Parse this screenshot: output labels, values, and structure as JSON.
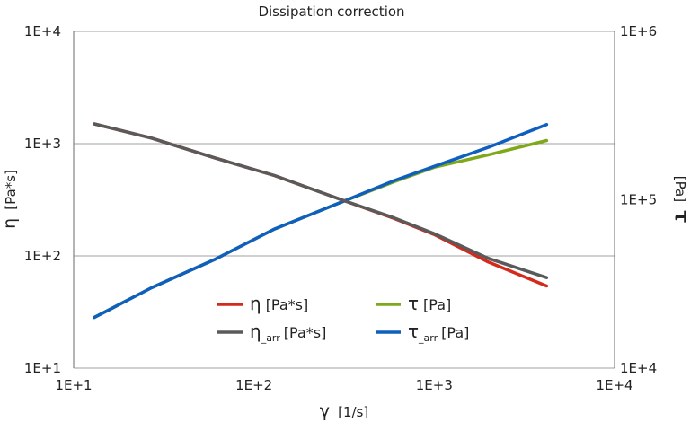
{
  "chart_data": {
    "type": "line",
    "title": "Dissipation correction",
    "x_axis": {
      "symbol": "γ",
      "unit": "[1/s]",
      "scale": "log",
      "range": [
        10,
        10000
      ],
      "ticks": [
        "1E+1",
        "1E+2",
        "1E+3",
        "1E+4"
      ]
    },
    "y_axis_left": {
      "symbol": "η",
      "unit": "[Pa*s]",
      "scale": "log",
      "range": [
        10,
        10000
      ],
      "ticks": [
        "1E+1",
        "1E+2",
        "1E+3",
        "1E+4"
      ]
    },
    "y_axis_right": {
      "symbol": "τ",
      "unit": "[Pa]",
      "scale": "log",
      "range": [
        10000,
        1000000
      ],
      "ticks": [
        "1E+4",
        "1E+5",
        "1E+6"
      ]
    },
    "grid": "horizontal",
    "legend_position": "bottom-center",
    "series": [
      {
        "legend_symbol": "η",
        "legend_sub": "",
        "legend_unit": "[Pa*s]",
        "axis": "left",
        "color": "#d42a1c",
        "x": [
          13,
          27,
          60,
          130,
          300,
          600,
          1000,
          2000,
          4200
        ],
        "y": [
          1500,
          1120,
          750,
          520,
          320,
          215,
          155,
          88,
          54
        ]
      },
      {
        "legend_symbol": "η",
        "legend_sub": "_arr",
        "legend_unit": "[Pa*s]",
        "axis": "left",
        "color": "#5a5a5a",
        "x": [
          13,
          27,
          60,
          130,
          300,
          600,
          1000,
          2000,
          4200
        ],
        "y": [
          1500,
          1120,
          750,
          520,
          320,
          218,
          158,
          95,
          64
        ]
      },
      {
        "legend_symbol": "τ",
        "legend_sub": "",
        "legend_unit": "[Pa]",
        "axis": "right",
        "color": "#7fa81a",
        "x": [
          13,
          27,
          60,
          130,
          300,
          600,
          1000,
          2000,
          4200
        ],
        "y": [
          20000,
          30000,
          44000,
          67000,
          96000,
          128000,
          156000,
          185000,
          225000
        ]
      },
      {
        "legend_symbol": "τ",
        "legend_sub": "_arr",
        "legend_unit": "[Pa]",
        "axis": "right",
        "color": "#0f5fbe",
        "x": [
          13,
          27,
          60,
          130,
          300,
          600,
          1000,
          2000,
          4200
        ],
        "y": [
          20000,
          30000,
          44000,
          67000,
          96000,
          130000,
          158000,
          205000,
          280000
        ]
      }
    ]
  }
}
